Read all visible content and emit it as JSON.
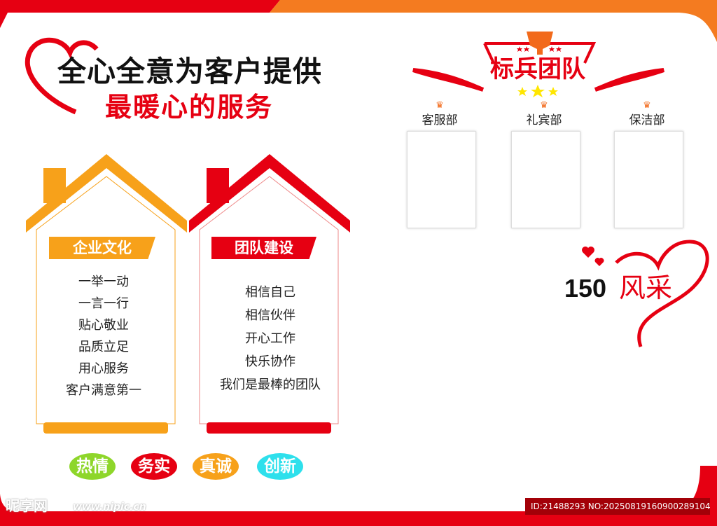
{
  "headline": {
    "line1": "全心全意为客户提供",
    "line2": "最暖心的服务"
  },
  "houses": [
    {
      "label": "企业文化",
      "color": "#f7a11a",
      "items": [
        "一举一动",
        "一言一行",
        "贴心敬业",
        "品质立足",
        "用心服务",
        "客户满意第一"
      ]
    },
    {
      "label": "团队建设",
      "color": "#e60012",
      "items": [
        "相信自己",
        "相信伙伴",
        "开心工作",
        "快乐协作",
        "我们是最棒的团队"
      ]
    }
  ],
  "values": [
    {
      "label": "热情",
      "color": "#8ed62a"
    },
    {
      "label": "务实",
      "color": "#e60012"
    },
    {
      "label": "真诚",
      "color": "#f7a11a"
    },
    {
      "label": "创新",
      "color": "#2ee0ec"
    }
  ],
  "team": {
    "title": "标兵团队",
    "departments": [
      "客服部",
      "礼宾部",
      "保洁部"
    ]
  },
  "showcase": {
    "number": "150",
    "text": "风采"
  },
  "watermark": {
    "logo": "昵享网",
    "site": "www.nipic.cn",
    "id": "ID:21488293 NO:20250819160900289104"
  }
}
